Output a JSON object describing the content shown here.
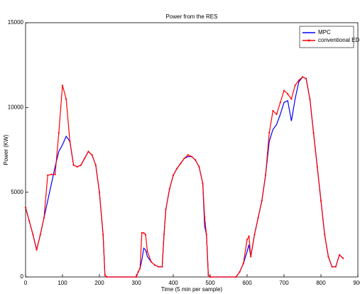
{
  "chart_data": {
    "type": "line",
    "title": "Power from the RES",
    "xlabel": "Time (5 min per sample)",
    "ylabel": "Power (KW)",
    "x": [
      0,
      10,
      20,
      30,
      40,
      50,
      60,
      70,
      80,
      90,
      100,
      110,
      120,
      130,
      140,
      150,
      160,
      170,
      180,
      190,
      200,
      210,
      215,
      220,
      300,
      305,
      310,
      315,
      320,
      325,
      330,
      340,
      350,
      360,
      370,
      375,
      380,
      390,
      400,
      410,
      420,
      430,
      440,
      450,
      460,
      470,
      480,
      485,
      490,
      495,
      500,
      570,
      580,
      590,
      600,
      605,
      610,
      620,
      630,
      640,
      650,
      660,
      670,
      680,
      690,
      700,
      710,
      720,
      730,
      740,
      750,
      760,
      770,
      780,
      790,
      800,
      810,
      820,
      830,
      840,
      850,
      860
    ],
    "series": [
      {
        "name": "MPC",
        "color": "#0000ff",
        "markers": false,
        "values": [
          4100,
          3300,
          2500,
          1600,
          2500,
          3500,
          4500,
          5500,
          6500,
          7400,
          7800,
          8300,
          8000,
          6600,
          6500,
          6600,
          7000,
          7400,
          7200,
          6600,
          5000,
          2500,
          100,
          0,
          0,
          300,
          500,
          1000,
          1700,
          1600,
          1200,
          900,
          700,
          600,
          600,
          2500,
          4000,
          5200,
          6000,
          6400,
          6700,
          7000,
          7100,
          7100,
          6900,
          6500,
          5500,
          3000,
          2500,
          100,
          0,
          0,
          300,
          800,
          1500,
          1900,
          1200,
          2500,
          3500,
          4500,
          6000,
          8000,
          8700,
          9000,
          9600,
          10300,
          10400,
          9200,
          10500,
          11500,
          11800,
          11700,
          10500,
          8500,
          6500,
          4500,
          2500,
          1200,
          600,
          600,
          1300,
          1100
        ]
      },
      {
        "name": "conventional ED",
        "color": "#ff0000",
        "markers": true,
        "values": [
          4100,
          3300,
          2500,
          1600,
          2500,
          3500,
          6000,
          6050,
          6050,
          8500,
          11300,
          10500,
          8000,
          6600,
          6500,
          6600,
          7000,
          7400,
          7200,
          6600,
          5000,
          2500,
          100,
          0,
          0,
          300,
          500,
          2600,
          2600,
          2500,
          1500,
          900,
          700,
          600,
          600,
          2500,
          4000,
          5200,
          6000,
          6400,
          6700,
          7000,
          7200,
          7100,
          6900,
          6500,
          5500,
          3500,
          2500,
          100,
          0,
          0,
          300,
          800,
          2200,
          2400,
          1200,
          2500,
          3500,
          4500,
          6000,
          8500,
          9800,
          9600,
          10300,
          11000,
          10800,
          10500,
          11300,
          11600,
          11800,
          11700,
          10500,
          8500,
          6500,
          4500,
          2500,
          1200,
          600,
          600,
          1300,
          1100
        ]
      }
    ],
    "xlim": [
      0,
      900
    ],
    "xticks": [
      0,
      100,
      200,
      300,
      400,
      500,
      600,
      700,
      800,
      900
    ],
    "ylim": [
      0,
      15000
    ],
    "yticks": [
      0,
      5000,
      10000,
      15000
    ],
    "legend": "upper right"
  }
}
